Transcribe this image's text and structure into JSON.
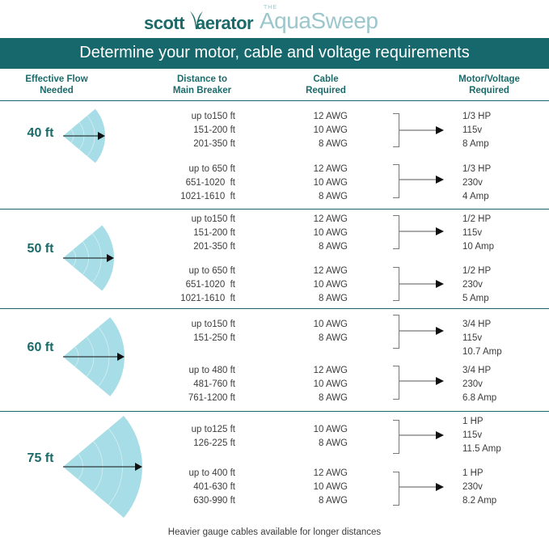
{
  "brand": {
    "scott": "scott",
    "aerator": "aerator",
    "the": "THE",
    "product": "AquaSweep"
  },
  "banner": "Determine your motor, cable and voltage requirements",
  "headers": {
    "flow": [
      "Effective Flow",
      "Needed"
    ],
    "distance": [
      "Distance to",
      "Main Breaker"
    ],
    "cable": [
      "Cable",
      "Required"
    ],
    "motor": [
      "Motor/Voltage",
      "Required"
    ]
  },
  "colors": {
    "teal": "#16686c",
    "wedge": "#a6dde6"
  },
  "sections": [
    {
      "flow": "40 ft",
      "groups": [
        {
          "distances": [
            "up to150 ft",
            "151-200 ft",
            "201-350 ft"
          ],
          "cables": [
            "12 AWG",
            "10 AWG",
            "8 AWG"
          ],
          "motor": [
            "1/3 HP",
            "115v",
            "8 Amp"
          ]
        },
        {
          "distances": [
            "up to 650 ft",
            "651-1020  ft",
            "1021-1610  ft"
          ],
          "cables": [
            "12 AWG",
            "10 AWG",
            "8 AWG"
          ],
          "motor": [
            "1/3 HP",
            "230v",
            "4 Amp"
          ]
        }
      ]
    },
    {
      "flow": "50 ft",
      "groups": [
        {
          "distances": [
            "up to150 ft",
            "151-200 ft",
            "201-350 ft"
          ],
          "cables": [
            "12 AWG",
            "10 AWG",
            "8 AWG"
          ],
          "motor": [
            "1/2 HP",
            "115v",
            "10 Amp"
          ]
        },
        {
          "distances": [
            "up to 650 ft",
            "651-1020  ft",
            "1021-1610  ft"
          ],
          "cables": [
            "12 AWG",
            "10 AWG",
            "8 AWG"
          ],
          "motor": [
            "1/2 HP",
            "230v",
            "5 Amp"
          ]
        }
      ]
    },
    {
      "flow": "60 ft",
      "groups": [
        {
          "distances": [
            "up to150 ft",
            "151-250 ft"
          ],
          "cables": [
            "10 AWG",
            "8 AWG"
          ],
          "motor": [
            "3/4 HP",
            "115v",
            "10.7 Amp"
          ]
        },
        {
          "distances": [
            "up to 480 ft",
            "481-760 ft",
            "761-1200 ft"
          ],
          "cables": [
            "12 AWG",
            "10 AWG",
            "8 AWG"
          ],
          "motor": [
            "3/4 HP",
            "230v",
            "6.8 Amp"
          ]
        }
      ]
    },
    {
      "flow": "75 ft",
      "groups": [
        {
          "distances": [
            "up to125 ft",
            "126-225 ft"
          ],
          "cables": [
            "10 AWG",
            "8 AWG"
          ],
          "motor": [
            "1 HP",
            "115v",
            "11.5 Amp"
          ]
        },
        {
          "distances": [
            "up to 400 ft",
            "401-630 ft",
            "630-990 ft"
          ],
          "cables": [
            "12 AWG",
            "10 AWG",
            "8 AWG"
          ],
          "motor": [
            "1 HP",
            "230v",
            "8.2 Amp"
          ]
        }
      ]
    }
  ],
  "footer": "Heavier gauge cables available for longer distances"
}
